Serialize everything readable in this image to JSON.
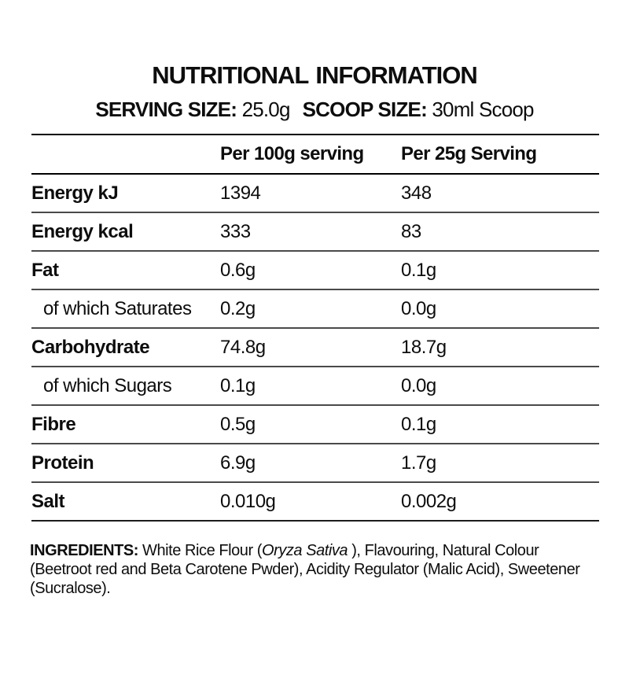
{
  "title": "NUTRITIONAL INFORMATION",
  "serving_line": {
    "serving_size_label": "SERVING SIZE:",
    "serving_size_value": " 25.0g",
    "scoop_size_label": "SCOOP SIZE:",
    "scoop_size_value": " 30ml Scoop"
  },
  "table": {
    "columns": [
      "",
      "Per 100g serving",
      "Per 25g Serving"
    ],
    "rows": [
      {
        "label": "Energy kJ",
        "per_100g": "1394",
        "per_25g": "348"
      },
      {
        "label": "Energy kcal",
        "per_100g": "333",
        "per_25g": "83"
      },
      {
        "label": "Fat",
        "per_100g": "0.6g",
        "per_25g": "0.1g"
      },
      {
        "label": "of which Saturates",
        "per_100g": "0.2g",
        "per_25g": "0.0g"
      },
      {
        "label": "Carbohydrate",
        "per_100g": "74.8g",
        "per_25g": "18.7g"
      },
      {
        "label": "of which Sugars",
        "per_100g": "0.1g",
        "per_25g": "0.0g"
      },
      {
        "label": "Fibre",
        "per_100g": "0.5g",
        "per_25g": "0.1g"
      },
      {
        "label": "Protein",
        "per_100g": "6.9g",
        "per_25g": "1.7g"
      },
      {
        "label": "Salt",
        "per_100g": "0.010g",
        "per_25g": "0.002g"
      }
    ]
  },
  "ingredients": {
    "label": "INGREDIENTS:",
    "text_before_italic": " White Rice Flour (",
    "italic_species": "Oryza Sativa",
    "text_after_italic": " ), Flavouring, Natural Colour (Beetroot red and Beta Carotene Pwder), Acidity Regulator (Malic Acid), Sweetener (Sucralose)."
  },
  "colors": {
    "background": "#ffffff",
    "text": "#0d0d0d",
    "line_dark": "#000000",
    "line_gray": "#4a4a4a"
  }
}
